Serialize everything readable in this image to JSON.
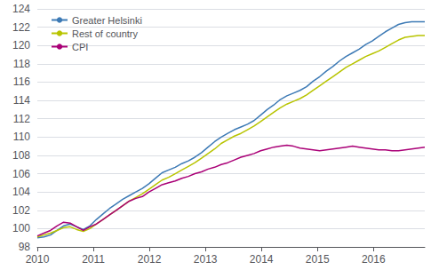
{
  "chart_data": {
    "type": "line",
    "x": [
      2010.0,
      2010.11722,
      2010.234441,
      2010.351661,
      2010.468881,
      2010.586102,
      2010.703322,
      2010.820542,
      2010.937763,
      2011.054983,
      2011.172203,
      2011.289424,
      2011.406644,
      2011.523864,
      2011.641085,
      2011.758305,
      2011.875525,
      2011.992746,
      2012.109966,
      2012.227186,
      2012.344407,
      2012.461627,
      2012.578847,
      2012.696068,
      2012.813288,
      2012.930508,
      2013.047729,
      2013.164949,
      2013.282169,
      2013.39939,
      2013.51661,
      2013.633831,
      2013.751051,
      2013.868271,
      2013.985492,
      2014.102712,
      2014.219932,
      2014.337153,
      2014.454373,
      2014.571593,
      2014.688814,
      2014.806034,
      2014.923254,
      2015.040475,
      2015.157695,
      2015.274915,
      2015.392136,
      2015.509356,
      2015.626576,
      2015.743797,
      2015.861017,
      2015.978237,
      2016.095458,
      2016.212678,
      2016.329898,
      2016.447119,
      2016.564339,
      2016.681559,
      2016.79878,
      2016.916
    ],
    "series": [
      {
        "name": "Greater Helsinki",
        "color": "#3d7ab5",
        "values": [
          99.0,
          99.1,
          99.3,
          99.8,
          100.3,
          100.5,
          100.2,
          99.9,
          100.3,
          101.0,
          101.6,
          102.2,
          102.7,
          103.2,
          103.6,
          104.0,
          104.4,
          104.9,
          105.5,
          106.1,
          106.4,
          106.7,
          107.1,
          107.4,
          107.8,
          108.3,
          108.9,
          109.5,
          110.0,
          110.4,
          110.8,
          111.1,
          111.4,
          111.8,
          112.4,
          113.0,
          113.5,
          114.1,
          114.5,
          114.8,
          115.1,
          115.5,
          116.1,
          116.6,
          117.2,
          117.7,
          118.3,
          118.8,
          119.2,
          119.6,
          120.1,
          120.5,
          121.0,
          121.5,
          121.9,
          122.3,
          122.5,
          122.6,
          122.6,
          122.6
        ]
      },
      {
        "name": "Rest of country",
        "color": "#b8c400",
        "values": [
          99.1,
          99.3,
          99.5,
          99.8,
          100.1,
          100.2,
          99.9,
          99.7,
          100.0,
          100.5,
          101.0,
          101.5,
          102.0,
          102.5,
          103.0,
          103.4,
          103.8,
          104.3,
          104.8,
          105.3,
          105.6,
          106.0,
          106.4,
          106.8,
          107.2,
          107.7,
          108.2,
          108.7,
          109.3,
          109.7,
          110.1,
          110.4,
          110.8,
          111.2,
          111.7,
          112.2,
          112.7,
          113.2,
          113.6,
          113.9,
          114.2,
          114.6,
          115.1,
          115.6,
          116.1,
          116.6,
          117.1,
          117.6,
          118.0,
          118.4,
          118.8,
          119.1,
          119.4,
          119.8,
          120.2,
          120.6,
          120.9,
          121.0,
          121.1,
          121.1
        ]
      },
      {
        "name": "CPI",
        "color": "#aa0077",
        "values": [
          99.2,
          99.5,
          99.8,
          100.3,
          100.7,
          100.6,
          100.2,
          99.8,
          100.2,
          100.5,
          101.0,
          101.5,
          102.0,
          102.5,
          103.0,
          103.3,
          103.5,
          104.0,
          104.4,
          104.8,
          105.0,
          105.2,
          105.5,
          105.7,
          106.0,
          106.2,
          106.5,
          106.7,
          107.0,
          107.2,
          107.5,
          107.8,
          108.0,
          108.2,
          108.5,
          108.7,
          108.9,
          109.0,
          109.1,
          109.0,
          108.8,
          108.7,
          108.6,
          108.5,
          108.6,
          108.7,
          108.8,
          108.9,
          109.0,
          108.9,
          108.8,
          108.7,
          108.6,
          108.6,
          108.5,
          108.5,
          108.6,
          108.7,
          108.8,
          108.9
        ]
      }
    ],
    "xlim": [
      2010.0,
      2016.916
    ],
    "xticks": [
      2010,
      2011,
      2012,
      2013,
      2014,
      2015,
      2016
    ],
    "ylim": [
      98,
      124
    ],
    "yticks": [
      98,
      100,
      102,
      104,
      106,
      108,
      110,
      112,
      114,
      116,
      118,
      120,
      122,
      124
    ],
    "grid": true,
    "legend": "upper left"
  }
}
